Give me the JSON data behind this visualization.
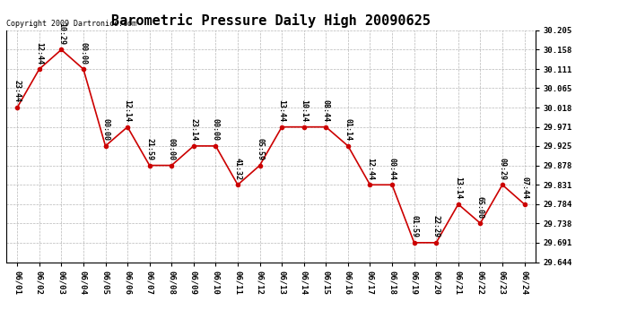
{
  "title": "Barometric Pressure Daily High 20090625",
  "copyright": "Copyright 2009 Dartronics.com",
  "dates": [
    "06/01",
    "06/02",
    "06/03",
    "06/04",
    "06/05",
    "06/06",
    "06/07",
    "06/08",
    "06/09",
    "06/10",
    "06/11",
    "06/12",
    "06/13",
    "06/14",
    "06/15",
    "06/16",
    "06/17",
    "06/18",
    "06/19",
    "06/20",
    "06/21",
    "06/22",
    "06/23",
    "06/24"
  ],
  "values": [
    30.018,
    30.111,
    30.158,
    30.111,
    29.925,
    29.971,
    29.878,
    29.878,
    29.925,
    29.925,
    29.831,
    29.878,
    29.971,
    29.971,
    29.971,
    29.925,
    29.831,
    29.831,
    29.691,
    29.691,
    29.784,
    29.738,
    29.831,
    29.784
  ],
  "time_labels": [
    "23:44",
    "12:44",
    "10:29",
    "00:00",
    "00:00",
    "12:14",
    "21:59",
    "00:00",
    "23:14",
    "00:00",
    "41:32",
    "05:59",
    "13:44",
    "10:14",
    "08:44",
    "01:14",
    "12:44",
    "00:44",
    "01:59",
    "22:29",
    "13:14",
    "65:00",
    "09:29",
    "07:44"
  ],
  "ylim_min": 29.644,
  "ylim_max": 30.205,
  "yticks": [
    30.205,
    30.158,
    30.111,
    30.065,
    30.018,
    29.971,
    29.925,
    29.878,
    29.831,
    29.784,
    29.738,
    29.691,
    29.644
  ],
  "line_color": "#cc0000",
  "marker_color": "#cc0000",
  "bg_color": "#ffffff",
  "grid_color": "#999999",
  "text_color": "#000000",
  "title_fontsize": 11,
  "label_fontsize": 6,
  "tick_fontsize": 6.5,
  "copyright_fontsize": 6
}
